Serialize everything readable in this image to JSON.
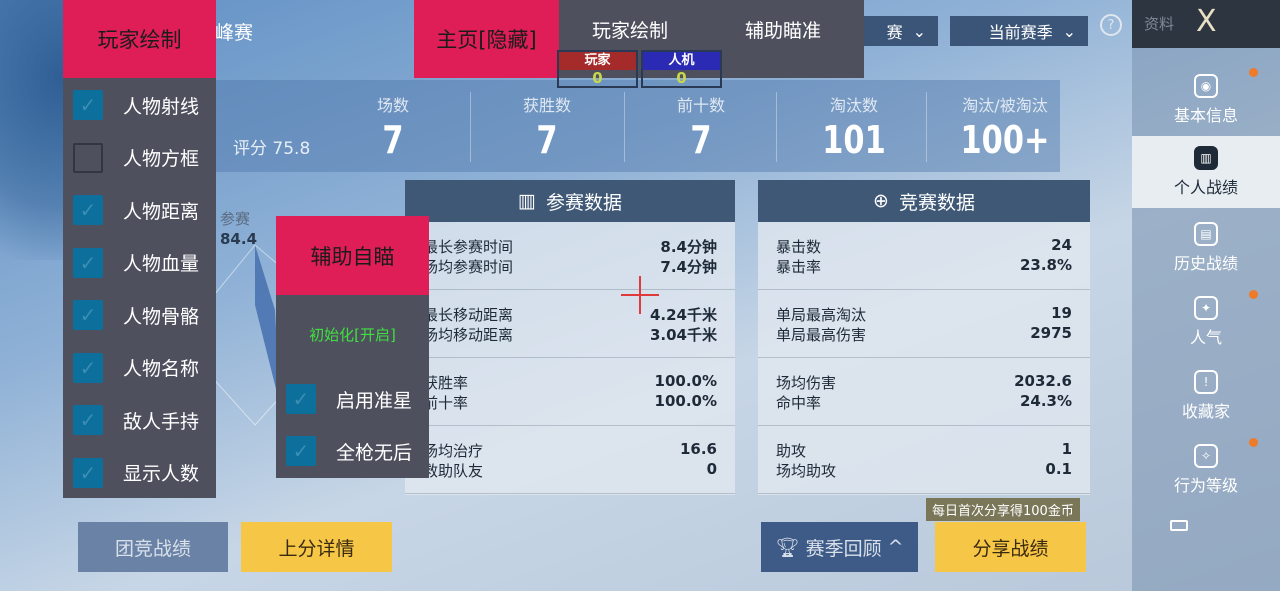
{
  "header": {
    "title_partial": "峰赛",
    "mode_dropdown": "赛",
    "season_dropdown": "当前赛季",
    "help_icon": "?",
    "sidebar_title": "资料",
    "close_icon": "X"
  },
  "sidebar": {
    "items": [
      {
        "label": "基本信息",
        "icon": "profile-icon",
        "dot": true
      },
      {
        "label": "个人战绩",
        "icon": "chart-icon",
        "active": true
      },
      {
        "label": "历史战绩",
        "icon": "history-icon"
      },
      {
        "label": "人气",
        "icon": "popularity-icon",
        "dot": true
      },
      {
        "label": "收藏家",
        "icon": "collector-icon"
      },
      {
        "label": "行为等级",
        "icon": "behavior-icon",
        "dot": true
      }
    ]
  },
  "stats": {
    "rating_label": "评分 75.8",
    "items": [
      {
        "label": "场数",
        "value": "7"
      },
      {
        "label": "获胜数",
        "value": "7"
      },
      {
        "label": "前十数",
        "value": "7"
      },
      {
        "label": "淘汰数",
        "value": "101"
      },
      {
        "label": "淘汰/被淘汰",
        "value": "100+"
      }
    ]
  },
  "radar": {
    "label": "参赛",
    "value": "84.4"
  },
  "participation": {
    "title": "参赛数据",
    "groups": [
      [
        [
          "最长参赛时间",
          "8.4分钟"
        ],
        [
          "场均参赛时间",
          "7.4分钟"
        ]
      ],
      [
        [
          "最长移动距离",
          "4.24千米"
        ],
        [
          "场均移动距离",
          "3.04千米"
        ]
      ],
      [
        [
          "获胜率",
          "100.0%"
        ],
        [
          "前十率",
          "100.0%"
        ]
      ],
      [
        [
          "场均治疗",
          "16.6"
        ],
        [
          "救助队友",
          "0"
        ]
      ]
    ]
  },
  "competition": {
    "title": "竞赛数据",
    "groups": [
      [
        [
          "暴击数",
          "24"
        ],
        [
          "暴击率",
          "23.8%"
        ]
      ],
      [
        [
          "单局最高淘汰",
          "19"
        ],
        [
          "单局最高伤害",
          "2975"
        ]
      ],
      [
        [
          "场均伤害",
          "2032.6"
        ],
        [
          "命中率",
          "24.3%"
        ]
      ],
      [
        [
          "助攻",
          "1"
        ],
        [
          "场均助攻",
          "0.1"
        ]
      ]
    ]
  },
  "buttons": {
    "team": "团竞战绩",
    "rank_detail": "上分详情",
    "season_review": "赛季回顾",
    "share": "分享战绩",
    "share_tip": "每日首次分享得100金币"
  },
  "overlay": {
    "player_menu": {
      "title": "玩家绘制",
      "items": [
        {
          "label": "人物射线",
          "checked": true
        },
        {
          "label": "人物方框",
          "checked": false
        },
        {
          "label": "人物距离",
          "checked": true
        },
        {
          "label": "人物血量",
          "checked": true
        },
        {
          "label": "人物骨骼",
          "checked": true
        },
        {
          "label": "人物名称",
          "checked": true
        },
        {
          "label": "敌人手持",
          "checked": true
        },
        {
          "label": "显示人数",
          "checked": true
        }
      ]
    },
    "home_tab": "主页[隐藏]",
    "tab_player": "玩家绘制",
    "tab_aim": "辅助瞄准",
    "counter_player": {
      "label": "玩家",
      "value": "0",
      "color": "#a52a2a"
    },
    "counter_bot": {
      "label": "人机",
      "value": "0",
      "color": "#2a2ab5"
    },
    "aim_menu": {
      "title": "辅助自瞄",
      "status": "初始化[开启]",
      "items": [
        {
          "label": "启用准星",
          "checked": true
        },
        {
          "label": "全枪无后",
          "checked": true
        }
      ]
    },
    "accent": "#df1d57"
  }
}
